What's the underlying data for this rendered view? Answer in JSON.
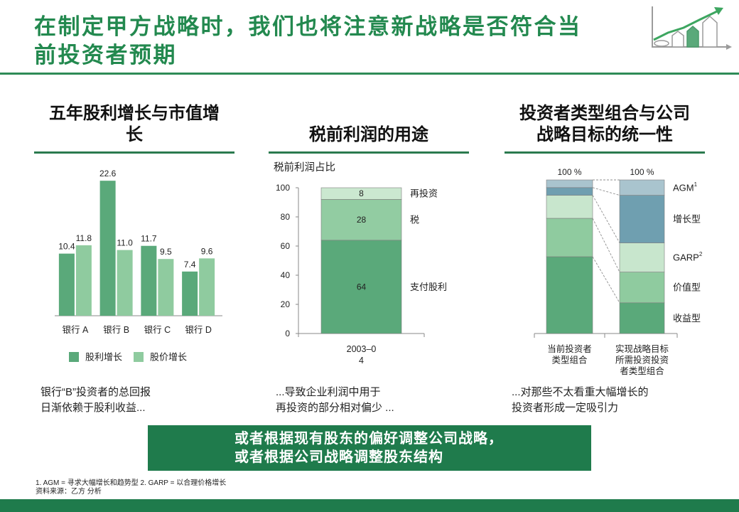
{
  "title": {
    "line1": "在制定甲方战略时，我们也将注意新战略是否符合当",
    "line2": "前投资者预期"
  },
  "logo_icon": "growth-chart-icon",
  "theme": {
    "primary": "#1f7b4c",
    "title": "#23894f",
    "rule": "#2e8b57",
    "heading_rule": "#2b7a4f"
  },
  "chart_data": [
    {
      "type": "bar",
      "title_lines": [
        "五年股利增长与市值增",
        "长"
      ],
      "categories": [
        "银行 A",
        "银行 B",
        "银行 C",
        "银行 D"
      ],
      "series": [
        {
          "name": "股利增长",
          "values": [
            10.4,
            22.6,
            11.7,
            7.4
          ],
          "color": "#5aa97a"
        },
        {
          "name": "股价增长",
          "values": [
            11.8,
            11.0,
            9.5,
            9.6
          ],
          "color": "#8fcb9f"
        }
      ],
      "ylim": [
        0,
        25
      ],
      "grid": false,
      "legend": "bottom"
    },
    {
      "type": "bar",
      "stacked": true,
      "title_lines": [
        "税前利润的用途"
      ],
      "ylabel": "税前利润占比",
      "ylim": [
        0,
        100
      ],
      "yticks": [
        0,
        20,
        40,
        60,
        80,
        100
      ],
      "category_lines": [
        [
          "2003–0",
          "4"
        ]
      ],
      "series": [
        {
          "name": "支付股利",
          "values": [
            64
          ],
          "color": "#5aa97a"
        },
        {
          "name": "税",
          "values": [
            28
          ],
          "color": "#92cca2"
        },
        {
          "name": "再投资",
          "values": [
            8
          ],
          "color": "#cbe8d0"
        }
      ],
      "grid": false
    },
    {
      "type": "bar",
      "stacked": true,
      "title_lines": [
        "投资者类型组合与公司",
        "战略目标的统一性"
      ],
      "totals": [
        "100 %",
        "100 %"
      ],
      "category_lines": [
        [
          "当前投资者",
          "类型组合"
        ],
        [
          "实现战略目标",
          "所需投资投资",
          "者类型组合"
        ]
      ],
      "ylim": [
        0,
        100
      ],
      "series": [
        {
          "name": "收益型",
          "values": [
            50,
            20
          ],
          "color": "#5aa97a"
        },
        {
          "name": "价值型",
          "values": [
            25,
            20
          ],
          "color": "#8fcb9f"
        },
        {
          "name": "GARP",
          "superscript": "2",
          "values": [
            15,
            19
          ],
          "color": "#c8e6cd"
        },
        {
          "name": "增长型",
          "values": [
            5,
            31
          ],
          "color": "#6f9fb0"
        },
        {
          "name": "AGM",
          "superscript": "1",
          "values": [
            5,
            10
          ],
          "color": "#a9c4ce"
        }
      ],
      "grid": false
    }
  ],
  "takeaways": [
    {
      "lines": [
        "银行“B”投资者的总回报",
        "日渐依赖于股利收益..."
      ]
    },
    {
      "lines": [
        "...导致企业利润中用于",
        "再投资的部分相对偏少 ..."
      ]
    },
    {
      "lines": [
        "...对那些不太看重大幅增长的",
        "投资者形成一定吸引力"
      ]
    }
  ],
  "callout": {
    "line1": "或者根据现有股东的偏好调整公司战略，",
    "line2": "或者根据公司战略调整股东结构"
  },
  "footnotes": {
    "definitions": "1. AGM = 寻求大幅增长和趋势型 2. GARP = 以合理价格增长",
    "source": "资料来源：乙方 分析"
  }
}
